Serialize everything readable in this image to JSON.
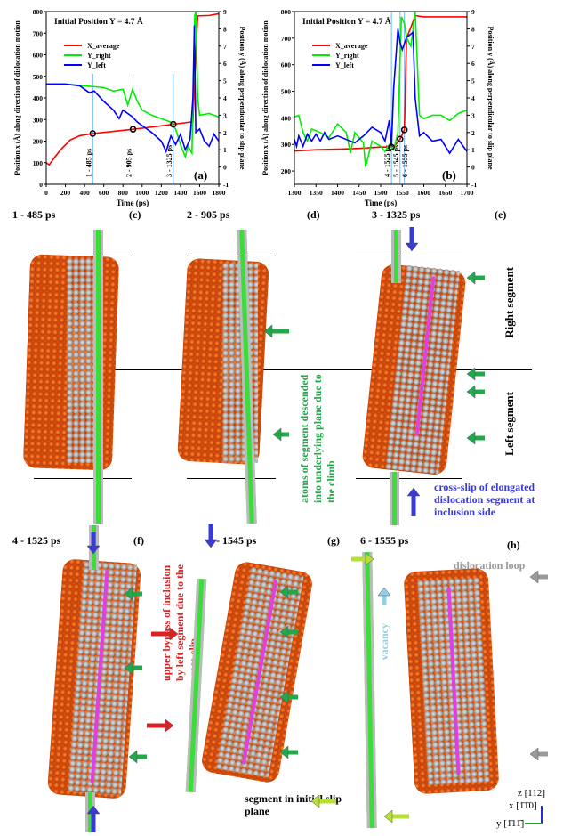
{
  "chart_data": [
    {
      "type": "line",
      "panel": "(a)",
      "title": "Initial Position Y = 4.7 Å",
      "xlabel": "Time (ps)",
      "ylabel": "Position x (Å) along direction of dislocation motion",
      "y2label": "Position y (Å) along perpendicular to slip plane",
      "xlim": [
        0,
        1800
      ],
      "ylim": [
        0,
        800
      ],
      "y2lim": [
        -1,
        9
      ],
      "xticks": [
        0,
        200,
        400,
        600,
        800,
        1000,
        1200,
        1400,
        1600,
        1800
      ],
      "yticks": [
        0,
        100,
        200,
        300,
        400,
        500,
        600,
        700,
        800
      ],
      "y2ticks": [
        -1,
        0,
        1,
        2,
        3,
        4,
        5,
        6,
        7,
        8,
        9
      ],
      "legend": "top-left",
      "markers": [
        {
          "t": 485,
          "label": "1 - 485 ps"
        },
        {
          "t": 905,
          "label": "2 - 905 ps"
        },
        {
          "t": 1325,
          "label": "3 - 1325 ps"
        }
      ],
      "series": [
        {
          "name": "X_average",
          "color": "#ff0000",
          "axis": "left",
          "x": [
            0,
            30,
            80,
            150,
            250,
            350,
            485,
            700,
            905,
            1100,
            1325,
            1450,
            1530,
            1560,
            1580,
            1700,
            1800
          ],
          "y": [
            100,
            90,
            120,
            160,
            205,
            225,
            235,
            245,
            255,
            265,
            278,
            285,
            290,
            600,
            780,
            782,
            790
          ]
        },
        {
          "name": "Y_right",
          "color": "#00ee00",
          "axis": "right",
          "x": [
            0,
            200,
            400,
            600,
            700,
            800,
            850,
            900,
            950,
            1000,
            1100,
            1200,
            1300,
            1350,
            1400,
            1450,
            1480,
            1520,
            1550,
            1560,
            1580,
            1600,
            1700,
            1800
          ],
          "y": [
            4.8,
            4.8,
            4.7,
            4.6,
            4.4,
            4.5,
            3.6,
            4.5,
            3.8,
            3.3,
            3.0,
            2.8,
            2.6,
            2.2,
            1.3,
            0.6,
            1.2,
            0.8,
            8.8,
            9,
            4,
            3,
            3.1,
            2.9
          ]
        },
        {
          "name": "Y_left",
          "color": "#0000ff",
          "axis": "right",
          "x": [
            0,
            200,
            350,
            450,
            500,
            600,
            700,
            760,
            800,
            900,
            950,
            1000,
            1100,
            1200,
            1250,
            1300,
            1350,
            1400,
            1450,
            1500,
            1530,
            1545,
            1560,
            1600,
            1650,
            1700,
            1750,
            1800
          ],
          "y": [
            4.8,
            4.8,
            4.7,
            4.3,
            4.4,
            3.8,
            3.3,
            2.8,
            3.3,
            2.9,
            2.6,
            2.4,
            2.0,
            1.5,
            0.9,
            1.8,
            1.3,
            1.9,
            1.0,
            1.6,
            4,
            8.2,
            2,
            2.2,
            1.5,
            1.2,
            1.9,
            1.5
          ]
        }
      ],
      "points_on": "X_average",
      "panel_label": "(a)"
    },
    {
      "type": "line",
      "panel": "(b)",
      "title": "Initial Position Y = 4.7 Å",
      "xlabel": "Time (ps)",
      "ylabel": "Position x (Å) along direction of dislocation motion",
      "y2label": "Position y (Å) along perpendicular to slip plane",
      "xlim": [
        1300,
        1700
      ],
      "ylim": [
        150,
        800
      ],
      "y2lim": [
        -1,
        9
      ],
      "xticks": [
        1300,
        1350,
        1400,
        1450,
        1500,
        1550,
        1600,
        1650,
        1700
      ],
      "yticks": [
        200,
        300,
        400,
        500,
        600,
        700,
        800
      ],
      "y2ticks": [
        -1,
        0,
        1,
        2,
        3,
        4,
        5,
        6,
        7,
        8,
        9
      ],
      "legend": "top-left",
      "markers": [
        {
          "t": 1525,
          "label": "4 - 1525 ps"
        },
        {
          "t": 1545,
          "label": "5 - 1545 ps"
        },
        {
          "t": 1555,
          "label": "6 - 1555 ps"
        }
      ],
      "series": [
        {
          "name": "X_average",
          "color": "#ff0000",
          "axis": "left",
          "x": [
            1300,
            1350,
            1400,
            1450,
            1500,
            1525,
            1535,
            1545,
            1555,
            1560,
            1570,
            1580,
            1600,
            1650,
            1700
          ],
          "y": [
            275,
            280,
            282,
            285,
            290,
            290,
            300,
            320,
            355,
            700,
            740,
            785,
            780,
            780,
            780
          ]
        },
        {
          "name": "Y_right",
          "color": "#00ee00",
          "axis": "right",
          "x": [
            1300,
            1310,
            1320,
            1330,
            1340,
            1360,
            1380,
            1400,
            1420,
            1430,
            1440,
            1460,
            1465,
            1480,
            1500,
            1510,
            1520,
            1530,
            1540,
            1548,
            1555,
            1560,
            1570,
            1580,
            1585,
            1590,
            1600,
            1620,
            1640,
            1660,
            1680,
            1700
          ],
          "y": [
            2.9,
            3.0,
            2.0,
            1.5,
            2.2,
            2.0,
            1.7,
            2.5,
            2.0,
            0.8,
            2.0,
            1.4,
            0.0,
            1.5,
            1.2,
            0.9,
            1.3,
            1.0,
            2.0,
            8.7,
            8.3,
            7.5,
            7.0,
            9,
            6,
            3,
            2.8,
            3.0,
            3.0,
            2.7,
            3.1,
            3.3
          ]
        },
        {
          "name": "Y_left",
          "color": "#0000ff",
          "axis": "right",
          "x": [
            1300,
            1305,
            1310,
            1320,
            1330,
            1340,
            1350,
            1360,
            1370,
            1380,
            1400,
            1420,
            1440,
            1460,
            1480,
            1500,
            1510,
            1520,
            1525,
            1530,
            1540,
            1545,
            1550,
            1560,
            1575,
            1580,
            1590,
            1600,
            1620,
            1640,
            1660,
            1680,
            1700
          ],
          "y": [
            1.6,
            1.2,
            1.8,
            1.2,
            1.9,
            1.5,
            1.9,
            1.5,
            2.0,
            1.6,
            1.8,
            1.6,
            1.4,
            1.8,
            2.3,
            2.0,
            1.5,
            2.7,
            1.2,
            4.5,
            8.0,
            7.2,
            6.8,
            7.5,
            7.8,
            4,
            1.8,
            2.0,
            1.5,
            1.6,
            0.8,
            1.6,
            0.9
          ]
        }
      ],
      "points_on": "X_average",
      "panel_label": "(b)"
    }
  ],
  "panels": {
    "c": {
      "time": "1 - 485 ps",
      "label": "(c)"
    },
    "d": {
      "time": "2 - 905 ps",
      "label": "(d)"
    },
    "e": {
      "time": "3 - 1325 ps",
      "label": "(e)"
    },
    "f": {
      "time": "4 - 1525 ps",
      "label": "(f)"
    },
    "g": {
      "time": "5 - 1545 ps",
      "label": "(g)"
    },
    "h": {
      "time": "6 - 1555 ps",
      "label": "(h)"
    }
  },
  "annotations": {
    "right_segment": "Right segment",
    "left_segment": "Left segment",
    "climb": "atoms of segment descended into underlying plane due to the climb",
    "cross_slip": "cross-slip of elongated dislocation segment at inclusion side",
    "upper_bypass": "upper bypass of inclusion by left segment due to the cross-slip",
    "dislocation_loop": "dislocation loop",
    "vacancy": "vacancy",
    "initial_plane": "segment in initial slip plane"
  },
  "axes_triad": {
    "z": "z [112]",
    "x": "x [1̄1̄0]",
    "y": "y [1̄11̄]"
  },
  "colors": {
    "green": "#21a84a",
    "blue": "#3a3ad6",
    "red": "#e02020",
    "grey": "#9a9a9a",
    "lightblue": "#8fd0ea",
    "lime": "#b6e034"
  }
}
